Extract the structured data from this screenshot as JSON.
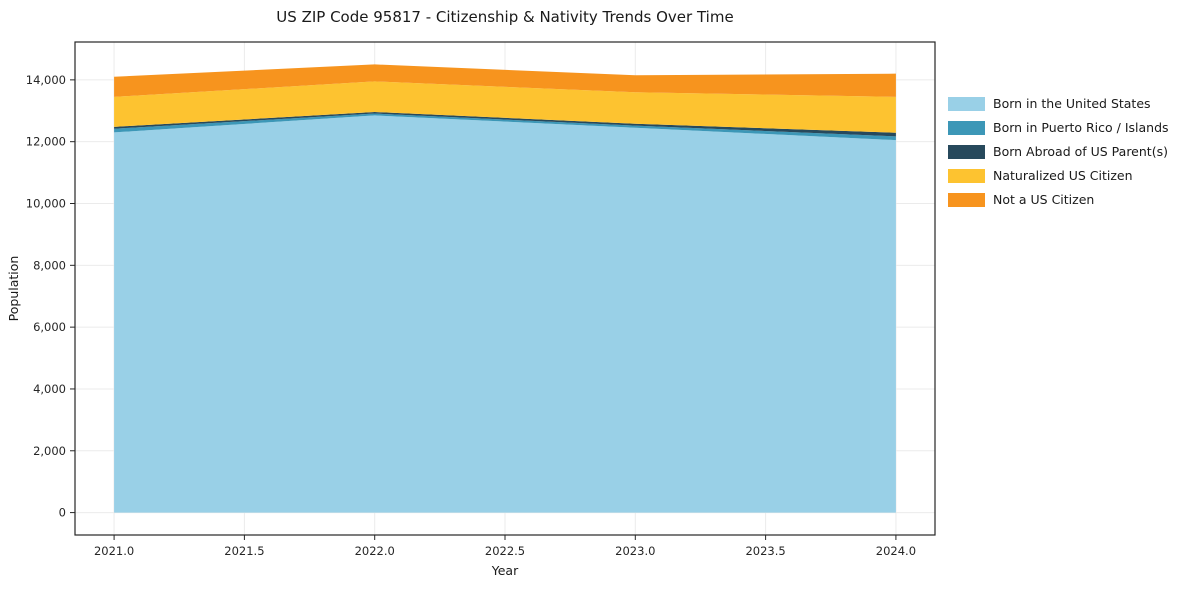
{
  "chart": {
    "title": "US ZIP Code 95817 - Citizenship & Nativity Trends Over Time",
    "xlabel": "Year",
    "ylabel": "Population"
  },
  "chart_data": {
    "type": "area",
    "stacked": true,
    "x": [
      2021,
      2022,
      2023,
      2024
    ],
    "series": [
      {
        "name": "Born in the United States",
        "color": "#99D0E7",
        "values": [
          12300,
          12850,
          12450,
          12050
        ]
      },
      {
        "name": "Born in Puerto Rico / Islands",
        "color": "#3C97B7",
        "values": [
          120,
          60,
          70,
          120
        ]
      },
      {
        "name": "Born Abroad of US Parent(s)",
        "color": "#27495C",
        "values": [
          60,
          50,
          60,
          120
        ]
      },
      {
        "name": "Naturalized US Citizen",
        "color": "#FDC330",
        "values": [
          970,
          990,
          1020,
          1160
        ]
      },
      {
        "name": "Not a US Citizen",
        "color": "#F7941E",
        "values": [
          650,
          550,
          550,
          750
        ]
      }
    ],
    "totals_by_year": [
      14100,
      14500,
      14150,
      14200
    ],
    "xticks": [
      2021.0,
      2021.5,
      2022.0,
      2022.5,
      2023.0,
      2023.5,
      2024.0
    ],
    "yticks": [
      0,
      2000,
      4000,
      6000,
      8000,
      10000,
      12000,
      14000
    ],
    "xlim": [
      2020.85,
      2024.15
    ],
    "ylim": [
      -725,
      15225
    ],
    "grid": true,
    "legend_position": "right",
    "grid_color": "#ebebeb",
    "spine_color": "#262626",
    "tick_label_color": "#262626"
  }
}
